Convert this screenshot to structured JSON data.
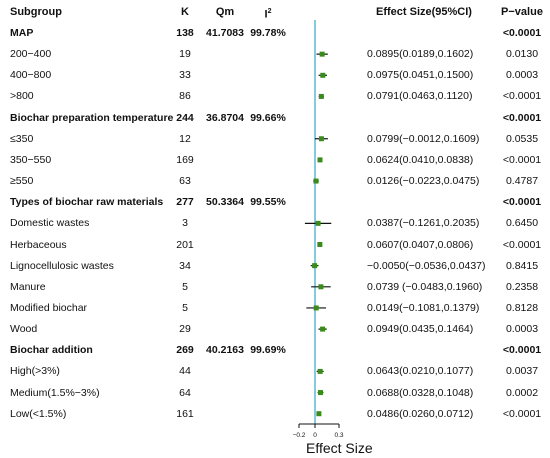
{
  "chart_data": {
    "type": "forest",
    "headers": {
      "subgroup": "Subgroup",
      "k": "K",
      "qm": "Qm",
      "i2": "I",
      "i2_sup": "2",
      "effect": "Effect Size(95%CI)",
      "pvalue": "P−value"
    },
    "xlabel": "Effect Size",
    "xlim": [
      -0.2,
      0.3
    ],
    "xticks": [
      "−0.2",
      "0",
      "0.3"
    ],
    "tick_values": [
      -0.2,
      0,
      0.3
    ],
    "reference_line": 0,
    "colors": {
      "point": "#3a8a1e",
      "ci": "#111111",
      "ref_line": "#5bbcd0"
    },
    "rows": [
      {
        "label": "MAP",
        "k": "138",
        "qm": "41.7083",
        "i2": "99.78%",
        "effect": "",
        "p": "<0.0001",
        "group": true
      },
      {
        "label": "200−400",
        "k": "19",
        "qm": "",
        "i2": "",
        "effect": "0.0895(0.0189,0.1602)",
        "p": "0.0130",
        "est": 0.0895,
        "lo": 0.0189,
        "hi": 0.1602
      },
      {
        "label": "400−800",
        "k": "33",
        "qm": "",
        "i2": "",
        "effect": "0.0975(0.0451,0.1500)",
        "p": "0.0003",
        "est": 0.0975,
        "lo": 0.0451,
        "hi": 0.15
      },
      {
        "label": ">800",
        "k": "86",
        "qm": "",
        "i2": "",
        "effect": "0.0791(0.0463,0.1120)",
        "p": "<0.0001",
        "est": 0.0791,
        "lo": 0.0463,
        "hi": 0.112
      },
      {
        "label": "Biochar preparation temperature",
        "k": "244",
        "qm": "36.8704",
        "i2": "99.66%",
        "effect": "",
        "p": "<0.0001",
        "group": true
      },
      {
        "label": "≤350",
        "k": "12",
        "qm": "",
        "i2": "",
        "effect": "0.0799(−0.0012,0.1609)",
        "p": "0.0535",
        "est": 0.0799,
        "lo": -0.0012,
        "hi": 0.1609
      },
      {
        "label": "350−550",
        "k": "169",
        "qm": "",
        "i2": "",
        "effect": "0.0624(0.0410,0.0838)",
        "p": "<0.0001",
        "est": 0.0624,
        "lo": 0.041,
        "hi": 0.0838
      },
      {
        "label": "≥550",
        "k": "63",
        "qm": "",
        "i2": "",
        "effect": "0.0126(−0.0223,0.0475)",
        "p": "0.4787",
        "est": 0.0126,
        "lo": -0.0223,
        "hi": 0.0475
      },
      {
        "label": "Types of biochar raw materials",
        "k": "277",
        "qm": "50.3364",
        "i2": "99.55%",
        "effect": "",
        "p": "<0.0001",
        "group": true
      },
      {
        "label": "Domestic wastes",
        "k": "3",
        "qm": "",
        "i2": "",
        "effect": "0.0387(−0.1261,0.2035)",
        "p": "0.6450",
        "est": 0.0387,
        "lo": -0.1261,
        "hi": 0.2035
      },
      {
        "label": "Herbaceous",
        "k": "201",
        "qm": "",
        "i2": "",
        "effect": "0.0607(0.0407,0.0806)",
        "p": "<0.0001",
        "est": 0.0607,
        "lo": 0.0407,
        "hi": 0.0806
      },
      {
        "label": "Lignocellulosic wastes",
        "k": "34",
        "qm": "",
        "i2": "",
        "effect": "−0.0050(−0.0536,0.0437)",
        "p": "0.8415",
        "est": -0.005,
        "lo": -0.0536,
        "hi": 0.0437
      },
      {
        "label": "Manure",
        "k": "5",
        "qm": "",
        "i2": "",
        "effect": "0.0739 (−0.0483,0.1960)",
        "p": "0.2358",
        "est": 0.0739,
        "lo": -0.0483,
        "hi": 0.196
      },
      {
        "label": "Modified biochar",
        "k": "5",
        "qm": "",
        "i2": "",
        "effect": "0.0149(−0.1081,0.1379)",
        "p": "0.8128",
        "est": 0.0149,
        "lo": -0.1081,
        "hi": 0.1379
      },
      {
        "label": "Wood",
        "k": "29",
        "qm": "",
        "i2": "",
        "effect": "0.0949(0.0435,0.1464)",
        "p": "0.0003",
        "est": 0.0949,
        "lo": 0.0435,
        "hi": 0.1464
      },
      {
        "label": "Biochar addition",
        "k": "269",
        "qm": "40.2163",
        "i2": "99.69%",
        "effect": "",
        "p": "<0.0001",
        "group": true
      },
      {
        "label": "High(>3%)",
        "k": "44",
        "qm": "",
        "i2": "",
        "effect": "0.0643(0.0210,0.1077)",
        "p": "0.0037",
        "est": 0.0643,
        "lo": 0.021,
        "hi": 0.1077
      },
      {
        "label": "Medium(1.5%−3%)",
        "k": "64",
        "qm": "",
        "i2": "",
        "effect": "0.0688(0.0328,0.1048)",
        "p": "0.0002",
        "est": 0.0688,
        "lo": 0.0328,
        "hi": 0.1048
      },
      {
        "label": "Low(<1.5%)",
        "k": "161",
        "qm": "",
        "i2": "",
        "effect": "0.0486(0.0260,0.0712)",
        "p": "<0.0001",
        "est": 0.0486,
        "lo": 0.026,
        "hi": 0.0712
      }
    ]
  }
}
